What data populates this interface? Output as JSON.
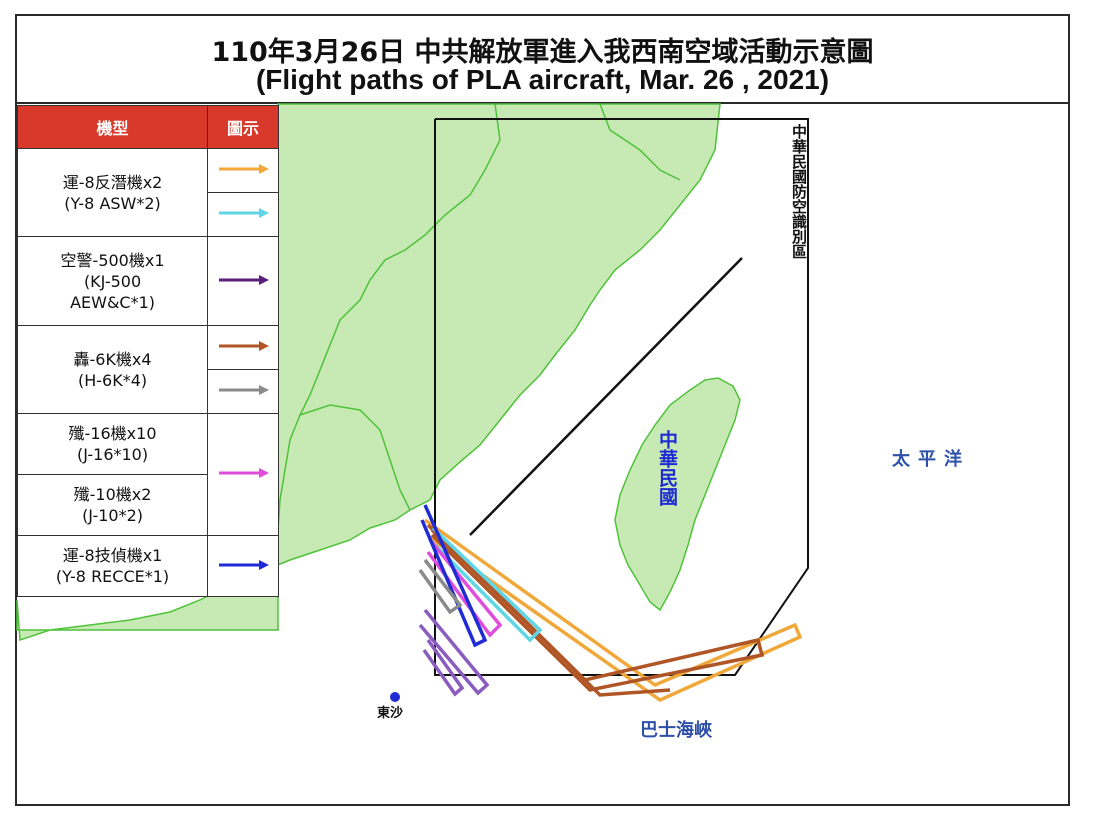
{
  "title": {
    "zh": "110年3月26日 中共解放軍進入我西南空域活動示意圖",
    "en": "(Flight paths of PLA aircraft, Mar. 26 , 2021)"
  },
  "legend": {
    "header_type": "機型",
    "header_symbol": "圖示",
    "rows": [
      {
        "label_zh": "運-8反潛機x2",
        "label_en": "(Y-8 ASW*2)",
        "colors": [
          "#f0a83a",
          "#5fd6e6"
        ]
      },
      {
        "label_zh": "空警-500機x1",
        "label_en": "(KJ-500 AEW&C*1)",
        "label_en_line1": "(KJ-500",
        "label_en_line2": "AEW&C*1)",
        "colors": [
          "#5a1e78"
        ]
      },
      {
        "label_zh": "轟-6K機x4",
        "label_en": "(H-6K*4)",
        "colors": [
          "#b05526",
          "#8a8a8a"
        ]
      },
      {
        "label_zh": "殲-16機x10",
        "label_en": "(J-16*10)",
        "colors": [
          "#e04ddc"
        ]
      },
      {
        "label_zh": "殲-10機x2",
        "label_en": "(J-10*2)",
        "colors": []
      },
      {
        "label_zh": "運-8技偵機x1",
        "label_en": "(Y-8 RECCE*1)",
        "colors": [
          "#1f2bd4"
        ]
      }
    ]
  },
  "map_labels": {
    "adiz": "中華民國防空識別區",
    "taiwan": "中華民國",
    "pacific": "太平洋",
    "bashi": "巴士海峽",
    "dongsha": "東沙"
  },
  "colors": {
    "land": "#c7eab5",
    "border": "#4fc23a",
    "legend_header": "#d8392b",
    "label_blue": "#2d50a8",
    "y8_asw_a": "#f0a83a",
    "y8_asw_b": "#5fd6e6",
    "kj500": "#5a1e78",
    "h6k_a": "#b05526",
    "h6k_b": "#8a8a8a",
    "fighter": "#e04ddc",
    "recce": "#1f2bd4"
  }
}
